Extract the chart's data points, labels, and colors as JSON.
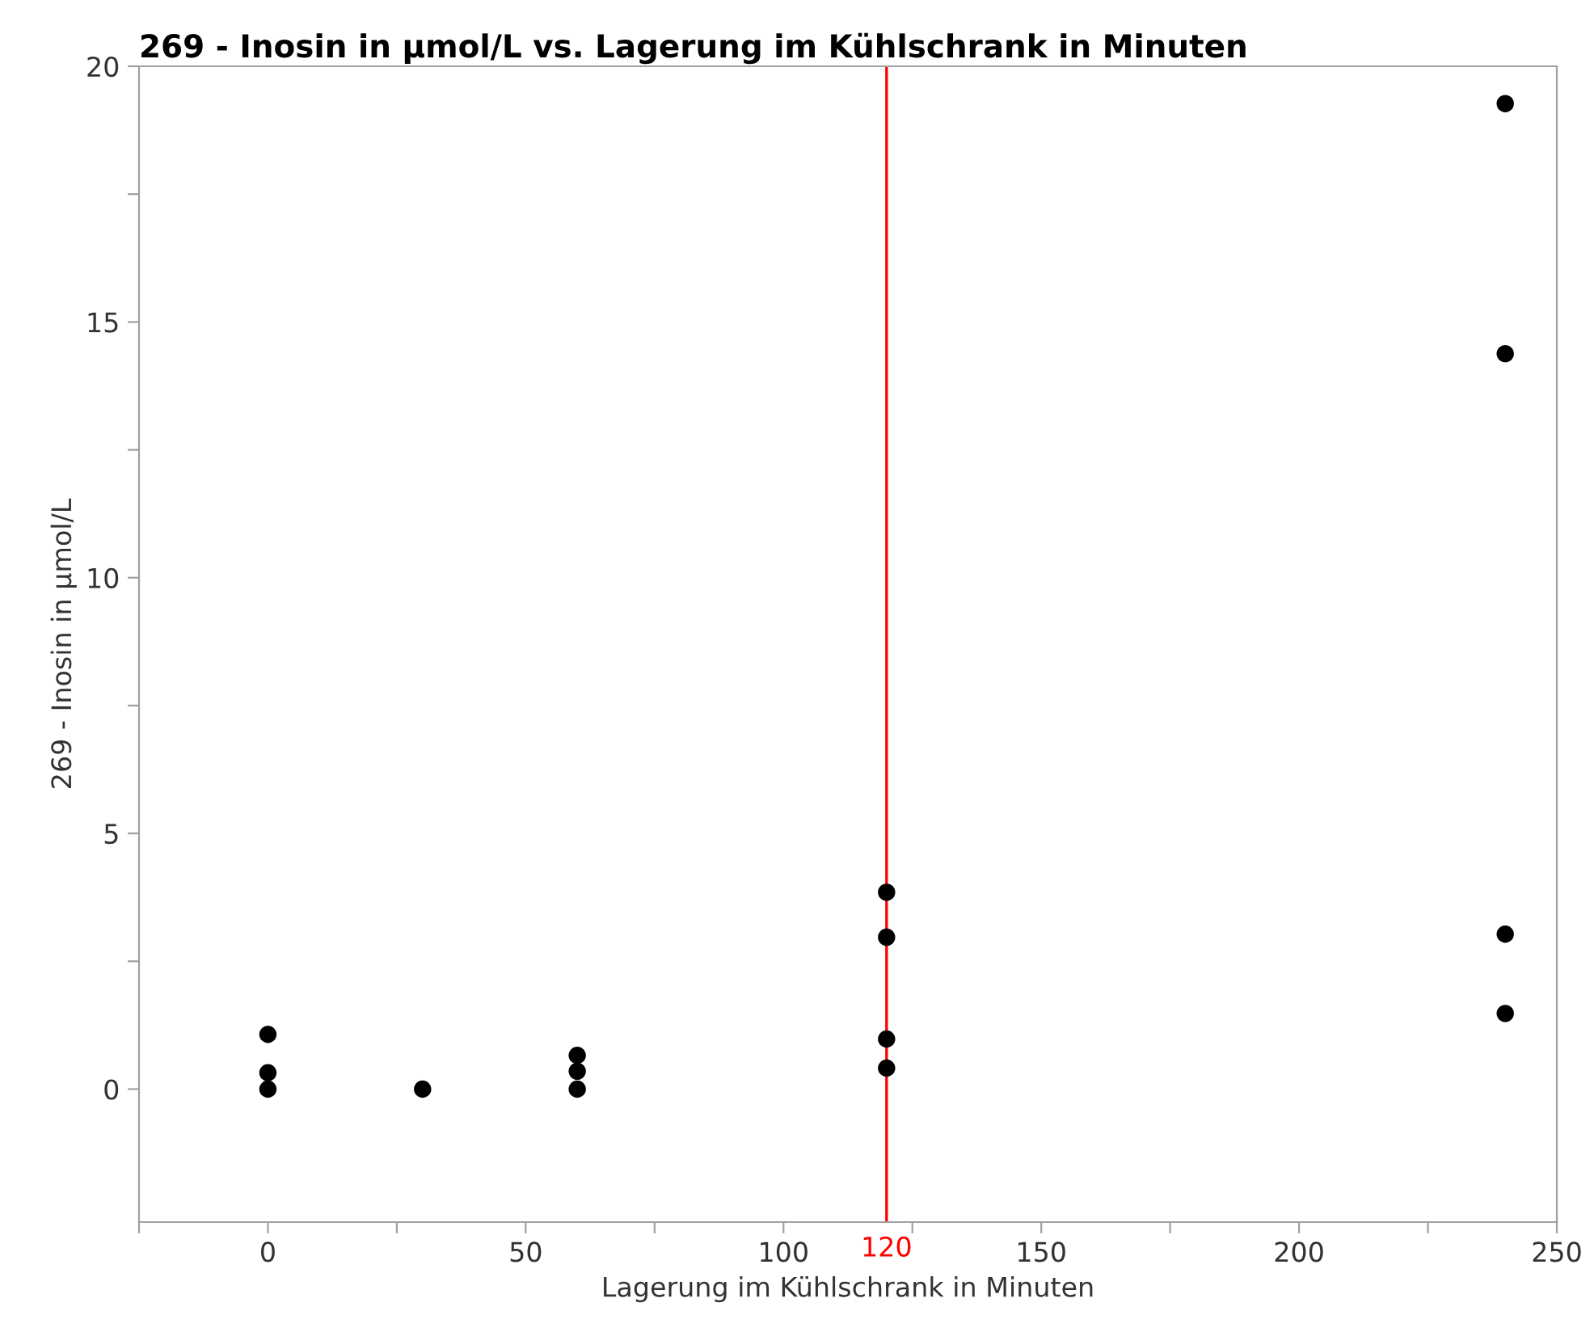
{
  "chart_data": {
    "type": "scatter",
    "title": "269 - Inosin in µmol/L vs. Lagerung im Kühlschrank in Minuten",
    "xlabel": "Lagerung im Kühlschrank in Minuten",
    "ylabel": "269 - Inosin in µmol/L",
    "x": [
      0,
      0,
      0,
      30,
      60,
      60,
      60,
      120,
      120,
      120,
      120,
      240,
      240,
      240,
      240
    ],
    "series": [
      {
        "color": "#000000",
        "values": [
          1.07,
          0.32,
          0,
          0,
          0.66,
          0.35,
          0,
          3.85,
          2.97,
          0.98,
          0.41,
          19.27,
          14.38,
          3.03,
          1.48
        ]
      }
    ],
    "marker": "circle",
    "xlim": [
      -25,
      250
    ],
    "ylim": [
      -2.6,
      20
    ],
    "xticks": [
      {
        "value": -25,
        "label": null
      },
      0,
      {
        "value": 25,
        "label": null
      },
      50,
      {
        "value": 75,
        "label": null
      },
      100,
      {
        "value": 125,
        "label": null
      },
      150,
      {
        "value": 175,
        "label": null
      },
      200,
      {
        "value": 225,
        "label": null
      },
      250
    ],
    "yticks": [
      0,
      {
        "value": 2.5,
        "label": null
      },
      5,
      {
        "value": 7.5,
        "label": null
      },
      10,
      {
        "value": 12.5,
        "label": null
      },
      15,
      {
        "value": 17.5,
        "label": null
      },
      20
    ],
    "ref_lines": [
      {
        "axis": "x",
        "value": 120,
        "label": "120",
        "color": "#ff0000"
      }
    ],
    "grid": false,
    "legend": false
  }
}
